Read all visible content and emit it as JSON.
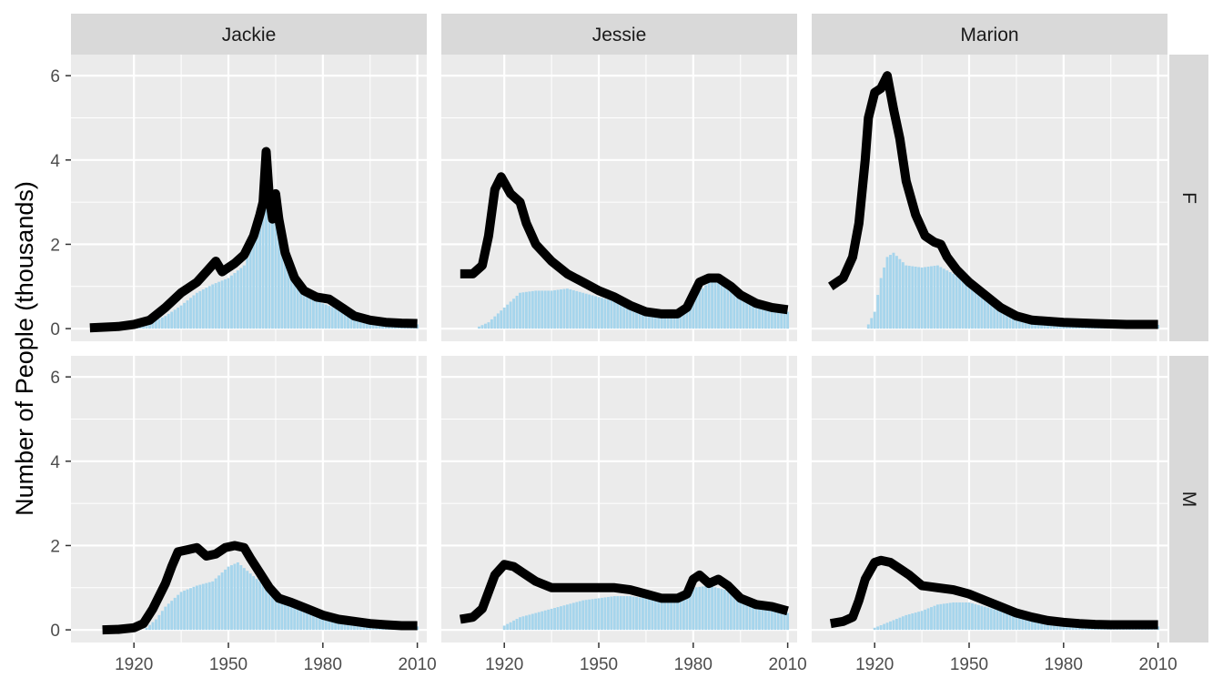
{
  "chart_data": {
    "type": "bar",
    "layout": "facet_grid",
    "ylabel": "Number of People (thousands)",
    "xlabel": "",
    "columns": [
      "Jackie",
      "Jessie",
      "Marion"
    ],
    "rows": [
      "F",
      "M"
    ],
    "xlim": [
      1900,
      2013
    ],
    "ylim": [
      -0.3,
      6.5
    ],
    "x_ticks": [
      1920,
      1950,
      1980,
      2010
    ],
    "y_ticks": [
      0,
      2,
      4,
      6
    ],
    "grid": true,
    "colors": {
      "panel_bg": "#ebebeb",
      "grid": "#ffffff",
      "strip_bg": "#d9d9d9",
      "bars": "#a6d5ec",
      "line": "#000000"
    },
    "panels": [
      {
        "name": "Jackie",
        "sex": "F",
        "line": [
          [
            1906,
            0.02
          ],
          [
            1915,
            0.05
          ],
          [
            1920,
            0.1
          ],
          [
            1925,
            0.2
          ],
          [
            1930,
            0.5
          ],
          [
            1935,
            0.85
          ],
          [
            1940,
            1.1
          ],
          [
            1943,
            1.35
          ],
          [
            1946,
            1.6
          ],
          [
            1948,
            1.35
          ],
          [
            1952,
            1.55
          ],
          [
            1955,
            1.75
          ],
          [
            1958,
            2.2
          ],
          [
            1960,
            2.7
          ],
          [
            1961,
            3.0
          ],
          [
            1962,
            4.2
          ],
          [
            1963,
            3.1
          ],
          [
            1964,
            2.6
          ],
          [
            1965,
            3.2
          ],
          [
            1966,
            2.6
          ],
          [
            1968,
            1.8
          ],
          [
            1971,
            1.2
          ],
          [
            1974,
            0.9
          ],
          [
            1978,
            0.75
          ],
          [
            1982,
            0.7
          ],
          [
            1986,
            0.5
          ],
          [
            1990,
            0.3
          ],
          [
            1995,
            0.2
          ],
          [
            2000,
            0.15
          ],
          [
            2005,
            0.13
          ],
          [
            2010,
            0.12
          ]
        ],
        "bars": [
          [
            1920,
            0.05
          ],
          [
            1925,
            0.12
          ],
          [
            1930,
            0.3
          ],
          [
            1935,
            0.55
          ],
          [
            1940,
            0.85
          ],
          [
            1945,
            1.05
          ],
          [
            1950,
            1.2
          ],
          [
            1955,
            1.5
          ],
          [
            1960,
            2.4
          ],
          [
            1962,
            2.95
          ],
          [
            1965,
            2.5
          ],
          [
            1968,
            1.6
          ],
          [
            1971,
            1.05
          ],
          [
            1975,
            0.75
          ],
          [
            1980,
            0.6
          ],
          [
            1985,
            0.45
          ],
          [
            1990,
            0.3
          ],
          [
            1995,
            0.2
          ],
          [
            2000,
            0.13
          ],
          [
            2005,
            0.11
          ],
          [
            2010,
            0.1
          ]
        ]
      },
      {
        "name": "Jessie",
        "sex": "F",
        "line": [
          [
            1906,
            1.3
          ],
          [
            1910,
            1.3
          ],
          [
            1913,
            1.5
          ],
          [
            1915,
            2.2
          ],
          [
            1917,
            3.3
          ],
          [
            1919,
            3.6
          ],
          [
            1922,
            3.2
          ],
          [
            1925,
            3.0
          ],
          [
            1927,
            2.5
          ],
          [
            1930,
            2.0
          ],
          [
            1935,
            1.6
          ],
          [
            1940,
            1.3
          ],
          [
            1945,
            1.1
          ],
          [
            1950,
            0.9
          ],
          [
            1955,
            0.75
          ],
          [
            1960,
            0.55
          ],
          [
            1965,
            0.4
          ],
          [
            1970,
            0.35
          ],
          [
            1975,
            0.35
          ],
          [
            1978,
            0.5
          ],
          [
            1980,
            0.8
          ],
          [
            1982,
            1.1
          ],
          [
            1985,
            1.2
          ],
          [
            1988,
            1.2
          ],
          [
            1992,
            1.0
          ],
          [
            1995,
            0.8
          ],
          [
            2000,
            0.6
          ],
          [
            2005,
            0.5
          ],
          [
            2010,
            0.45
          ]
        ],
        "bars": [
          [
            1912,
            0.05
          ],
          [
            1915,
            0.15
          ],
          [
            1920,
            0.5
          ],
          [
            1925,
            0.85
          ],
          [
            1930,
            0.9
          ],
          [
            1935,
            0.9
          ],
          [
            1940,
            0.95
          ],
          [
            1945,
            0.85
          ],
          [
            1950,
            0.75
          ],
          [
            1955,
            0.65
          ],
          [
            1960,
            0.5
          ],
          [
            1965,
            0.38
          ],
          [
            1970,
            0.3
          ],
          [
            1975,
            0.3
          ],
          [
            1978,
            0.45
          ],
          [
            1980,
            0.75
          ],
          [
            1985,
            1.1
          ],
          [
            1988,
            1.1
          ],
          [
            1992,
            0.95
          ],
          [
            1995,
            0.75
          ],
          [
            2000,
            0.55
          ],
          [
            2005,
            0.45
          ],
          [
            2010,
            0.4
          ]
        ]
      },
      {
        "name": "Marion",
        "sex": "F",
        "line": [
          [
            1906,
            1.0
          ],
          [
            1910,
            1.2
          ],
          [
            1913,
            1.7
          ],
          [
            1915,
            2.5
          ],
          [
            1917,
            4.0
          ],
          [
            1918,
            5.0
          ],
          [
            1920,
            5.6
          ],
          [
            1922,
            5.7
          ],
          [
            1924,
            6.0
          ],
          [
            1926,
            5.2
          ],
          [
            1928,
            4.5
          ],
          [
            1930,
            3.5
          ],
          [
            1933,
            2.7
          ],
          [
            1936,
            2.2
          ],
          [
            1939,
            2.05
          ],
          [
            1941,
            2.0
          ],
          [
            1943,
            1.7
          ],
          [
            1946,
            1.4
          ],
          [
            1950,
            1.1
          ],
          [
            1955,
            0.8
          ],
          [
            1960,
            0.5
          ],
          [
            1965,
            0.3
          ],
          [
            1970,
            0.2
          ],
          [
            1980,
            0.15
          ],
          [
            1990,
            0.12
          ],
          [
            2000,
            0.1
          ],
          [
            2010,
            0.1
          ]
        ],
        "bars": [
          [
            1918,
            0.1
          ],
          [
            1920,
            0.4
          ],
          [
            1922,
            1.2
          ],
          [
            1924,
            1.7
          ],
          [
            1926,
            1.8
          ],
          [
            1928,
            1.65
          ],
          [
            1930,
            1.5
          ],
          [
            1935,
            1.45
          ],
          [
            1940,
            1.5
          ],
          [
            1945,
            1.3
          ],
          [
            1950,
            1.05
          ],
          [
            1955,
            0.75
          ],
          [
            1960,
            0.45
          ],
          [
            1965,
            0.25
          ],
          [
            1970,
            0.15
          ],
          [
            1980,
            0.12
          ],
          [
            1990,
            0.1
          ],
          [
            2000,
            0.09
          ],
          [
            2010,
            0.09
          ]
        ]
      },
      {
        "name": "Jackie",
        "sex": "M",
        "line": [
          [
            1910,
            0.0
          ],
          [
            1915,
            0.01
          ],
          [
            1920,
            0.05
          ],
          [
            1923,
            0.15
          ],
          [
            1926,
            0.5
          ],
          [
            1930,
            1.1
          ],
          [
            1932,
            1.5
          ],
          [
            1934,
            1.85
          ],
          [
            1937,
            1.9
          ],
          [
            1940,
            1.95
          ],
          [
            1943,
            1.75
          ],
          [
            1946,
            1.8
          ],
          [
            1949,
            1.95
          ],
          [
            1952,
            2.0
          ],
          [
            1955,
            1.95
          ],
          [
            1957,
            1.7
          ],
          [
            1960,
            1.35
          ],
          [
            1963,
            1.0
          ],
          [
            1966,
            0.75
          ],
          [
            1970,
            0.65
          ],
          [
            1975,
            0.5
          ],
          [
            1980,
            0.35
          ],
          [
            1985,
            0.25
          ],
          [
            1990,
            0.2
          ],
          [
            1995,
            0.15
          ],
          [
            2000,
            0.12
          ],
          [
            2005,
            0.1
          ],
          [
            2010,
            0.1
          ]
        ],
        "bars": [
          [
            1924,
            0.05
          ],
          [
            1927,
            0.25
          ],
          [
            1930,
            0.55
          ],
          [
            1935,
            0.9
          ],
          [
            1940,
            1.05
          ],
          [
            1945,
            1.15
          ],
          [
            1950,
            1.5
          ],
          [
            1953,
            1.6
          ],
          [
            1956,
            1.4
          ],
          [
            1960,
            1.15
          ],
          [
            1965,
            0.75
          ],
          [
            1970,
            0.55
          ],
          [
            1975,
            0.45
          ],
          [
            1980,
            0.3
          ],
          [
            1985,
            0.2
          ],
          [
            1990,
            0.15
          ],
          [
            1995,
            0.12
          ],
          [
            2000,
            0.1
          ],
          [
            2010,
            0.08
          ]
        ]
      },
      {
        "name": "Jessie",
        "sex": "M",
        "line": [
          [
            1906,
            0.25
          ],
          [
            1910,
            0.3
          ],
          [
            1913,
            0.5
          ],
          [
            1915,
            0.9
          ],
          [
            1917,
            1.3
          ],
          [
            1920,
            1.55
          ],
          [
            1923,
            1.5
          ],
          [
            1926,
            1.35
          ],
          [
            1930,
            1.15
          ],
          [
            1935,
            1.0
          ],
          [
            1940,
            1.0
          ],
          [
            1945,
            1.0
          ],
          [
            1950,
            1.0
          ],
          [
            1955,
            1.0
          ],
          [
            1960,
            0.95
          ],
          [
            1965,
            0.85
          ],
          [
            1970,
            0.75
          ],
          [
            1975,
            0.75
          ],
          [
            1978,
            0.85
          ],
          [
            1980,
            1.2
          ],
          [
            1982,
            1.3
          ],
          [
            1985,
            1.1
          ],
          [
            1988,
            1.2
          ],
          [
            1991,
            1.05
          ],
          [
            1995,
            0.75
          ],
          [
            2000,
            0.6
          ],
          [
            2005,
            0.55
          ],
          [
            2010,
            0.45
          ]
        ],
        "bars": [
          [
            1920,
            0.1
          ],
          [
            1925,
            0.3
          ],
          [
            1930,
            0.4
          ],
          [
            1935,
            0.5
          ],
          [
            1940,
            0.6
          ],
          [
            1945,
            0.7
          ],
          [
            1950,
            0.75
          ],
          [
            1955,
            0.8
          ],
          [
            1960,
            0.8
          ],
          [
            1965,
            0.75
          ],
          [
            1970,
            0.7
          ],
          [
            1975,
            0.7
          ],
          [
            1978,
            0.8
          ],
          [
            1980,
            1.0
          ],
          [
            1985,
            1.05
          ],
          [
            1990,
            0.95
          ],
          [
            1995,
            0.7
          ],
          [
            2000,
            0.55
          ],
          [
            2005,
            0.5
          ],
          [
            2010,
            0.4
          ]
        ]
      },
      {
        "name": "Marion",
        "sex": "M",
        "line": [
          [
            1906,
            0.15
          ],
          [
            1910,
            0.2
          ],
          [
            1913,
            0.3
          ],
          [
            1915,
            0.7
          ],
          [
            1917,
            1.2
          ],
          [
            1920,
            1.6
          ],
          [
            1922,
            1.65
          ],
          [
            1925,
            1.6
          ],
          [
            1928,
            1.45
          ],
          [
            1931,
            1.3
          ],
          [
            1935,
            1.05
          ],
          [
            1940,
            1.0
          ],
          [
            1945,
            0.95
          ],
          [
            1950,
            0.85
          ],
          [
            1955,
            0.7
          ],
          [
            1960,
            0.55
          ],
          [
            1965,
            0.4
          ],
          [
            1970,
            0.3
          ],
          [
            1975,
            0.22
          ],
          [
            1980,
            0.18
          ],
          [
            1985,
            0.15
          ],
          [
            1990,
            0.13
          ],
          [
            1995,
            0.12
          ],
          [
            2000,
            0.12
          ],
          [
            2005,
            0.12
          ],
          [
            2010,
            0.12
          ]
        ],
        "bars": [
          [
            1920,
            0.05
          ],
          [
            1925,
            0.2
          ],
          [
            1930,
            0.35
          ],
          [
            1935,
            0.45
          ],
          [
            1940,
            0.6
          ],
          [
            1945,
            0.65
          ],
          [
            1950,
            0.65
          ],
          [
            1955,
            0.55
          ],
          [
            1960,
            0.45
          ],
          [
            1965,
            0.35
          ],
          [
            1970,
            0.25
          ],
          [
            1975,
            0.18
          ],
          [
            1980,
            0.15
          ],
          [
            1985,
            0.12
          ],
          [
            1990,
            0.1
          ],
          [
            1995,
            0.09
          ],
          [
            2000,
            0.08
          ],
          [
            2010,
            0.08
          ]
        ]
      }
    ]
  }
}
